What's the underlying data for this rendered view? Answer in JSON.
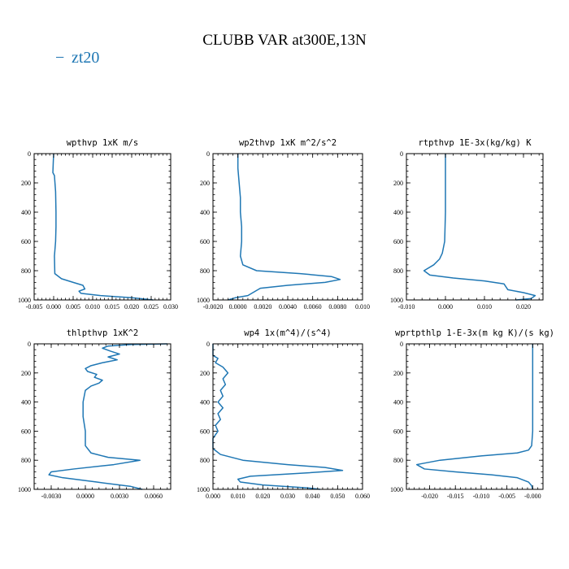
{
  "figure": {
    "title": "CLUBB VAR at300E,13N",
    "legend": [
      {
        "label": "zt20",
        "marker": "−",
        "color": "#1f77b4"
      }
    ]
  },
  "chart_data": [
    {
      "type": "line",
      "title": "wpthvp  1xK m/s",
      "xlim": [
        -0.005,
        0.03
      ],
      "ylim": [
        1000,
        0
      ],
      "xticks": [
        -0.005,
        0.0,
        0.005,
        0.01,
        0.015,
        0.02,
        0.025,
        0.03
      ],
      "xticklabels": [
        "-0.005",
        "0.000",
        "0.005",
        "0.010",
        "0.015",
        "0.020",
        "0.025",
        "0.030"
      ],
      "yticks": [
        0,
        200,
        400,
        600,
        800,
        1000
      ],
      "yticklabels": [
        "0",
        "200",
        "400",
        "600",
        "800",
        "1000"
      ],
      "series": [
        {
          "color": "#1f77b4",
          "x": [
            0.0,
            -0.0001,
            -0.0002,
            0.0002,
            0.0005,
            0.0006,
            0.0006,
            0.0005,
            0.0002,
            0.0003,
            0.002,
            0.005,
            0.0075,
            0.008,
            0.0065,
            0.007,
            0.012,
            0.02,
            0.0255
          ],
          "y": [
            0,
            60,
            130,
            150,
            260,
            400,
            500,
            600,
            700,
            820,
            855,
            880,
            900,
            925,
            940,
            955,
            970,
            985,
            1000
          ]
        }
      ]
    },
    {
      "type": "line",
      "title": "wp2thvp  1xK m^2/s^2",
      "xlim": [
        -0.002,
        0.01
      ],
      "ylim": [
        1000,
        0
      ],
      "xticks": [
        -0.002,
        0.0,
        0.002,
        0.004,
        0.006,
        0.008,
        0.01
      ],
      "xticklabels": [
        "-0.0020",
        "0.0000",
        "0.0020",
        "0.0040",
        "0.0060",
        "0.0080",
        "0.010"
      ],
      "yticks": [
        0,
        200,
        400,
        600,
        800,
        1000
      ],
      "yticklabels": [
        "0",
        "200",
        "400",
        "600",
        "800",
        "1000"
      ],
      "series": [
        {
          "color": "#1f77b4",
          "x": [
            0.0,
            0.0,
            0.0001,
            0.0002,
            0.0002,
            0.0003,
            0.0003,
            0.0002,
            0.0004,
            0.0015,
            0.005,
            0.0075,
            0.0082,
            0.007,
            0.004,
            0.0018,
            0.0012,
            0.0008,
            -0.0002,
            -0.0008
          ],
          "y": [
            0,
            100,
            200,
            300,
            400,
            500,
            600,
            700,
            760,
            800,
            820,
            840,
            860,
            880,
            900,
            920,
            950,
            970,
            985,
            1000
          ]
        }
      ]
    },
    {
      "type": "line",
      "title": "rtpthvp  1E-3x(kg/kg) K",
      "xlim": [
        -0.01,
        0.025
      ],
      "ylim": [
        1000,
        0
      ],
      "xticks": [
        -0.01,
        0.0,
        0.01,
        0.02
      ],
      "xticklabels": [
        "-0.010",
        "0.000",
        "0.010",
        "0.020"
      ],
      "yticks": [
        0,
        200,
        400,
        600,
        800,
        1000
      ],
      "yticklabels": [
        "0",
        "200",
        "400",
        "600",
        "800",
        "1000"
      ],
      "series": [
        {
          "color": "#1f77b4",
          "x": [
            0.0,
            0.0,
            0.0,
            -0.0002,
            -0.0008,
            -0.0015,
            -0.003,
            -0.0055,
            -0.004,
            0.002,
            0.01,
            0.015,
            0.016,
            0.02,
            0.023,
            0.022,
            0.018
          ],
          "y": [
            0,
            200,
            400,
            600,
            680,
            720,
            760,
            800,
            830,
            850,
            870,
            890,
            930,
            950,
            970,
            990,
            1000
          ]
        }
      ]
    },
    {
      "type": "line",
      "title": "thlpthvp  1xK^2",
      "xlim": [
        -0.0045,
        0.0075
      ],
      "ylim": [
        1000,
        0
      ],
      "xticks": [
        -0.003,
        0.0,
        0.003,
        0.006
      ],
      "xticklabels": [
        "-0.0030",
        "0.0000",
        "0.0030",
        "0.0060"
      ],
      "yticks": [
        0,
        200,
        400,
        600,
        800,
        1000
      ],
      "yticklabels": [
        "0",
        "200",
        "400",
        "600",
        "800",
        "1000"
      ],
      "series": [
        {
          "color": "#1f77b4",
          "x": [
            0.0072,
            0.004,
            0.002,
            0.0015,
            0.0022,
            0.003,
            0.002,
            0.0028,
            0.0015,
            0.0005,
            0.0,
            0.0002,
            0.001,
            0.0008,
            0.0015,
            0.0012,
            0.0005,
            0.0,
            -0.0002,
            -0.0002,
            0.0,
            0.0,
            0.0005,
            0.002,
            0.0048,
            0.0025,
            -0.001,
            -0.003,
            -0.0032,
            -0.002,
            0.001,
            0.004,
            0.005
          ],
          "y": [
            0,
            5,
            15,
            30,
            50,
            70,
            90,
            110,
            130,
            150,
            170,
            190,
            210,
            230,
            250,
            270,
            290,
            320,
            400,
            500,
            600,
            700,
            750,
            780,
            800,
            830,
            860,
            880,
            900,
            920,
            950,
            980,
            1000
          ]
        }
      ]
    },
    {
      "type": "line",
      "title": "wp4  1x(m^4)/(s^4)",
      "xlim": [
        0.0,
        0.06
      ],
      "ylim": [
        1000,
        0
      ],
      "xticks": [
        0.0,
        0.01,
        0.02,
        0.03,
        0.04,
        0.05,
        0.06
      ],
      "xticklabels": [
        "0.000",
        "0.010",
        "0.020",
        "0.030",
        "0.040",
        "0.050",
        "0.060"
      ],
      "yticks": [
        0,
        200,
        400,
        600,
        800,
        1000
      ],
      "yticklabels": [
        "0",
        "200",
        "400",
        "600",
        "800",
        "1000"
      ],
      "series": [
        {
          "color": "#1f77b4",
          "x": [
            0.0,
            0.0,
            0.002,
            0.001,
            0.004,
            0.006,
            0.004,
            0.005,
            0.003,
            0.004,
            0.002,
            0.004,
            0.002,
            0.003,
            0.001,
            0.002,
            0.0,
            0.0,
            0.003,
            0.012,
            0.03,
            0.045,
            0.052,
            0.035,
            0.015,
            0.01,
            0.011,
            0.02,
            0.038,
            0.043
          ],
          "y": [
            0,
            80,
            100,
            130,
            160,
            200,
            240,
            280,
            320,
            360,
            400,
            440,
            480,
            520,
            560,
            600,
            650,
            720,
            760,
            800,
            830,
            850,
            870,
            890,
            910,
            930,
            950,
            970,
            990,
            1000
          ]
        }
      ]
    },
    {
      "type": "line",
      "title": "wprtpthlp  1-E-3x(m kg K)/(s kg)",
      "xlim": [
        -0.0245,
        0.002
      ],
      "ylim": [
        1000,
        0
      ],
      "xticks": [
        -0.02,
        -0.015,
        -0.01,
        -0.005,
        -0.0
      ],
      "xticklabels": [
        "-0.020",
        "-0.015",
        "-0.010",
        "-0.005",
        "-0.000"
      ],
      "yticks": [
        0,
        200,
        400,
        600,
        800,
        1000
      ],
      "yticklabels": [
        "0",
        "200",
        "400",
        "600",
        "800",
        "1000"
      ],
      "series": [
        {
          "color": "#1f77b4",
          "x": [
            0.0,
            0.0,
            0.0,
            0.0,
            -0.0002,
            -0.0008,
            -0.003,
            -0.01,
            -0.018,
            -0.0225,
            -0.021,
            -0.015,
            -0.008,
            -0.003,
            -0.0008,
            -0.0002,
            0.0
          ],
          "y": [
            0,
            200,
            400,
            600,
            700,
            730,
            750,
            770,
            800,
            830,
            860,
            880,
            900,
            920,
            950,
            975,
            1000
          ]
        }
      ]
    }
  ]
}
